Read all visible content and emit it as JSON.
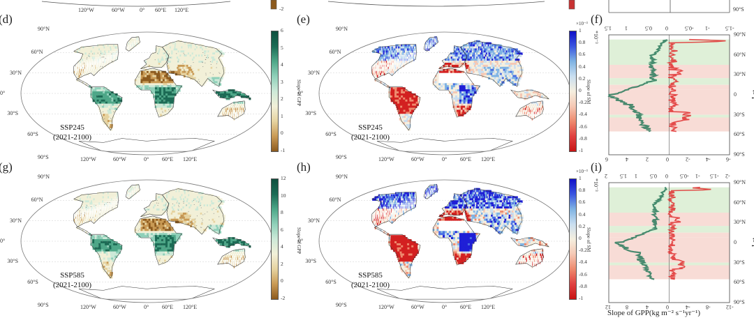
{
  "panels": {
    "d": {
      "label": "(d)",
      "scenario": "SSP245",
      "period": "(2021-2100)",
      "cbar_title": "Slope of GPP",
      "cbar_ticks": [
        "6",
        "5",
        "4",
        "3",
        "2",
        "1",
        "0",
        "-1"
      ],
      "cbar_exp": "",
      "type": "gpp"
    },
    "e": {
      "label": "(e)",
      "scenario": "SSP245",
      "period": "(2021-2100)",
      "cbar_title": "Slope of SM",
      "cbar_ticks": [
        "1",
        "0.8",
        "0.6",
        "0.4",
        "0.2",
        "0",
        "-0.2",
        "-0.4",
        "-0.6",
        "-0.8",
        "-1"
      ],
      "cbar_exp": "×10⁻³",
      "type": "sm"
    },
    "g": {
      "label": "(g)",
      "scenario": "SSP585",
      "period": "(2021-2100)",
      "cbar_title": "Slope of GPP",
      "cbar_ticks": [
        "12",
        "10",
        "8",
        "6",
        "4",
        "2",
        "0",
        "-2"
      ],
      "cbar_exp": "",
      "type": "gpp"
    },
    "h": {
      "label": "(h)",
      "scenario": "SSP585",
      "period": "(2021-2100)",
      "cbar_title": "Slope of SM",
      "cbar_ticks": [
        "1",
        "0.8",
        "0.6",
        "0.4",
        "0.2",
        "0",
        "-0.2",
        "-0.4",
        "-0.6",
        "-0.8",
        "-1"
      ],
      "cbar_exp": "×10⁻³",
      "type": "sm"
    },
    "f": {
      "label": "(f)",
      "top_ticks": [
        "1.5",
        "1",
        "0.5",
        "0",
        "-0.5",
        "-1",
        "-1.5"
      ],
      "exp": "*10⁻³"
    },
    "i": {
      "label": "(i)",
      "top_ticks": [
        "2",
        "1.5",
        "1",
        "0.5",
        "0",
        "-0.5",
        "-1",
        "-1.5",
        "-2"
      ],
      "exp": "*10⁻³",
      "bottom_ticks": [
        "12",
        "8",
        "4",
        "0",
        "-4",
        "-8",
        "-12"
      ]
    }
  },
  "map_lat_labels": [
    "90°N",
    "60°N",
    "30°N",
    "0°",
    "30°S",
    "60°S",
    "90°S"
  ],
  "map_lon_labels": [
    "120°W",
    "60°W",
    "0°",
    "60°E",
    "120°E"
  ],
  "profile_lat_labels": [
    "90°N",
    "60°N",
    "30°N",
    "0",
    "30°S",
    "60°S",
    "90°S"
  ],
  "top_row": {
    "cbar_bottom_tick": "-2",
    "lat_label": "90°S"
  },
  "f_bottom_ticks": [
    "6",
    "4",
    "2",
    "0",
    "-2",
    "-4",
    "-6"
  ],
  "lat_axis_title": "Lat",
  "x_axis_title": "Slope of GPP(kg m⁻² s⁻¹yr⁻¹)",
  "colors": {
    "gpp_pos": "#1c6b55",
    "gpp_neg": "#8c5a1e",
    "sm_pos": "#1f1fd6",
    "sm_neg": "#d32020",
    "green_band": "#dff0d8",
    "red_band": "#f8dcd6"
  }
}
